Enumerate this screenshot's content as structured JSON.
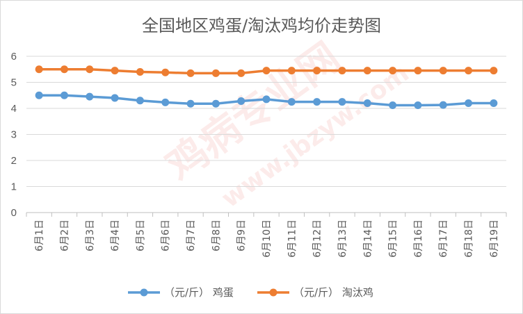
{
  "chart_data": {
    "type": "line",
    "title": "全国地区鸡蛋/淘汰鸡均价走势图",
    "categories": [
      "6月1日",
      "6月2日",
      "6月3日",
      "6月4日",
      "6月5日",
      "6月6日",
      "6月7日",
      "6月8日",
      "6月9日",
      "6月10日",
      "6月11日",
      "6月12日",
      "6月13日",
      "6月14日",
      "6月15日",
      "6月16日",
      "6月17日",
      "6月18日",
      "6月19日"
    ],
    "series": [
      {
        "name": "（元/斤） 鸡蛋",
        "color": "#5b9bd5",
        "values": [
          4.5,
          4.5,
          4.45,
          4.4,
          4.3,
          4.23,
          4.18,
          4.18,
          4.28,
          4.35,
          4.25,
          4.25,
          4.25,
          4.2,
          4.12,
          4.12,
          4.13,
          4.2,
          4.2
        ]
      },
      {
        "name": "（元/斤） 淘汰鸡",
        "color": "#ed7d31",
        "values": [
          5.5,
          5.5,
          5.5,
          5.45,
          5.4,
          5.38,
          5.35,
          5.35,
          5.35,
          5.45,
          5.45,
          5.45,
          5.45,
          5.45,
          5.45,
          5.45,
          5.45,
          5.45,
          5.45
        ]
      }
    ],
    "y_ticks": [
      "0",
      "1",
      "2",
      "3",
      "4",
      "5",
      "6"
    ],
    "ylim": [
      0,
      6
    ],
    "grid": true,
    "legend_position": "bottom"
  },
  "watermark": {
    "main": "鸡病专业网",
    "url": "www.jbzyw.com"
  }
}
